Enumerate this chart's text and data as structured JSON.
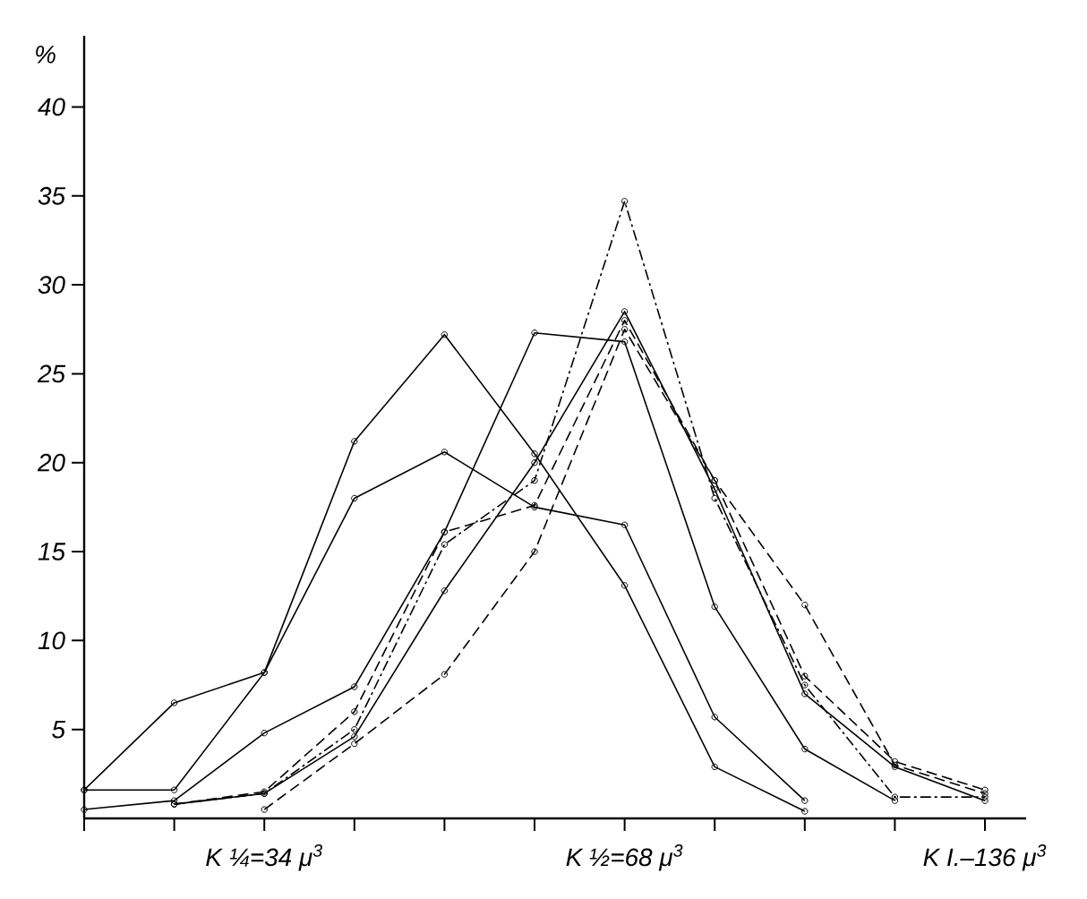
{
  "chart_data": {
    "type": "line",
    "ylabel": "%",
    "categories": [
      null,
      null,
      "K ¼=34 μ$^{3}$",
      null,
      null,
      null,
      "K ½=68 μ$^{3}$",
      null,
      null,
      null,
      "K I.–136 μ$^{3}$"
    ],
    "ylim": [
      0,
      44
    ],
    "yticks": [
      5,
      10,
      15,
      20,
      25,
      30,
      35,
      40
    ],
    "marker": "circle",
    "series": [
      {
        "color": "#000000",
        "line_style": "solid",
        "values": [
          1.6,
          6.5,
          8.2,
          18.0,
          20.6,
          17.5,
          16.5,
          5.7,
          1.0,
          null,
          null
        ]
      },
      {
        "color": "#000000",
        "line_style": "solid",
        "values": [
          1.6,
          1.6,
          8.2,
          21.2,
          27.2,
          20.5,
          13.1,
          2.9,
          0.4,
          null,
          null
        ]
      },
      {
        "color": "#000000",
        "line_style": "solid",
        "values": [
          0.5,
          1.0,
          4.8,
          7.4,
          16.1,
          27.3,
          26.8,
          11.9,
          3.9,
          1.0,
          null
        ]
      },
      {
        "color": "#000000",
        "line_style": "solid",
        "values": [
          null,
          0.8,
          1.4,
          4.6,
          12.8,
          20.0,
          28.5,
          18.5,
          7.0,
          2.9,
          1.0
        ]
      },
      {
        "color": "#000000",
        "line_style": "dashdot",
        "values": [
          null,
          0.8,
          1.4,
          5.0,
          15.4,
          19.0,
          34.7,
          18.0,
          7.5,
          1.2,
          1.2
        ]
      },
      {
        "color": "#000000",
        "line_style": "dashed",
        "values": [
          null,
          0.8,
          1.5,
          6.0,
          16.1,
          17.6,
          28.0,
          19.0,
          8.0,
          3.2,
          1.6
        ]
      },
      {
        "color": "#000000",
        "line_style": "dashed",
        "values": [
          null,
          null,
          0.5,
          4.2,
          8.1,
          15.0,
          27.5,
          19.0,
          12.0,
          3.0,
          1.4
        ]
      }
    ]
  }
}
